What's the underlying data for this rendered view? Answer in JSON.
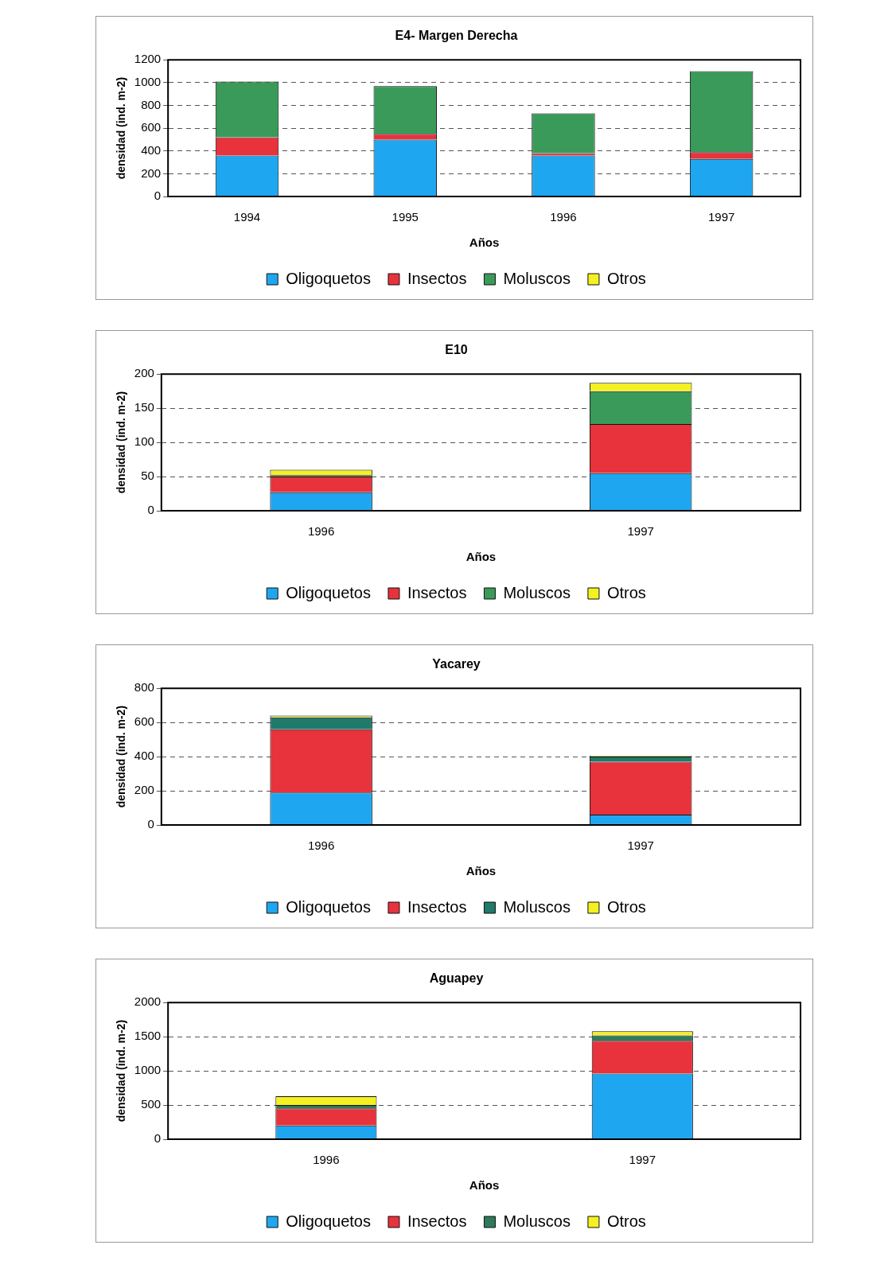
{
  "chart_data": [
    {
      "type": "bar",
      "title": "E4- Margen Derecha",
      "xlabel": "Años",
      "ylabel": "densidad (ind. m-2)",
      "categories": [
        "1994",
        "1995",
        "1996",
        "1997"
      ],
      "stacked": true,
      "ylim": [
        0,
        1200
      ],
      "yticks": [
        0,
        200,
        400,
        600,
        800,
        1000,
        1200
      ],
      "grid": "y",
      "legend": "bottom",
      "series": [
        {
          "name": "Oligoquetos",
          "color": "#1ea7f0",
          "values": [
            360,
            500,
            360,
            330
          ]
        },
        {
          "name": "Insectos",
          "color": "#e8323c",
          "values": [
            160,
            50,
            20,
            60
          ]
        },
        {
          "name": "Moluscos",
          "color": "#3a9a5a",
          "values": [
            490,
            420,
            350,
            710
          ]
        },
        {
          "name": "Otros",
          "color": "#f5f020",
          "values": [
            null,
            null,
            null,
            null
          ]
        }
      ]
    },
    {
      "type": "bar",
      "title": "E10",
      "xlabel": "Años",
      "ylabel": "densidad (ind. m-2)",
      "categories": [
        "1996",
        "1997"
      ],
      "stacked": true,
      "ylim": [
        0,
        200
      ],
      "yticks": [
        0,
        50,
        100,
        150,
        200
      ],
      "grid": "y",
      "legend": "bottom",
      "series": [
        {
          "name": "Oligoquetos",
          "color": "#1ea7f0",
          "values": [
            27,
            55
          ]
        },
        {
          "name": "Insectos",
          "color": "#e8323c",
          "values": [
            23,
            72
          ]
        },
        {
          "name": "Moluscos",
          "color": "#3a9a5a",
          "values": [
            2,
            48
          ]
        },
        {
          "name": "Otros",
          "color": "#f5f020",
          "values": [
            8,
            12
          ]
        }
      ]
    },
    {
      "type": "bar",
      "title": "Yacarey",
      "xlabel": "Años",
      "ylabel": "densidad (ind. m-2)",
      "categories": [
        "1996",
        "1997"
      ],
      "stacked": true,
      "ylim": [
        0,
        800
      ],
      "yticks": [
        0,
        200,
        400,
        600,
        800
      ],
      "grid": "y",
      "legend": "bottom",
      "series": [
        {
          "name": "Oligoquetos",
          "color": "#1ea7f0",
          "values": [
            190,
            60
          ]
        },
        {
          "name": "Insectos",
          "color": "#e8323c",
          "values": [
            370,
            310
          ]
        },
        {
          "name": "Moluscos",
          "color": "#1f7a6a",
          "values": [
            70,
            30
          ]
        },
        {
          "name": "Otros",
          "color": "#f5f020",
          "values": [
            10,
            5
          ]
        }
      ]
    },
    {
      "type": "bar",
      "title": "Aguapey",
      "xlabel": "Años",
      "ylabel": "densidad (ind. m-2)",
      "categories": [
        "1996",
        "1997"
      ],
      "stacked": true,
      "ylim": [
        0,
        2000
      ],
      "yticks": [
        0,
        500,
        1000,
        1500,
        2000
      ],
      "grid": "y",
      "legend": "bottom",
      "series": [
        {
          "name": "Oligoquetos",
          "color": "#1ea7f0",
          "values": [
            200,
            960
          ]
        },
        {
          "name": "Insectos",
          "color": "#e8323c",
          "values": [
            250,
            480
          ]
        },
        {
          "name": "Moluscos",
          "color": "#2f7a5a",
          "values": [
            50,
            80
          ]
        },
        {
          "name": "Otros",
          "color": "#f5f020",
          "values": [
            130,
            60
          ]
        }
      ]
    }
  ]
}
